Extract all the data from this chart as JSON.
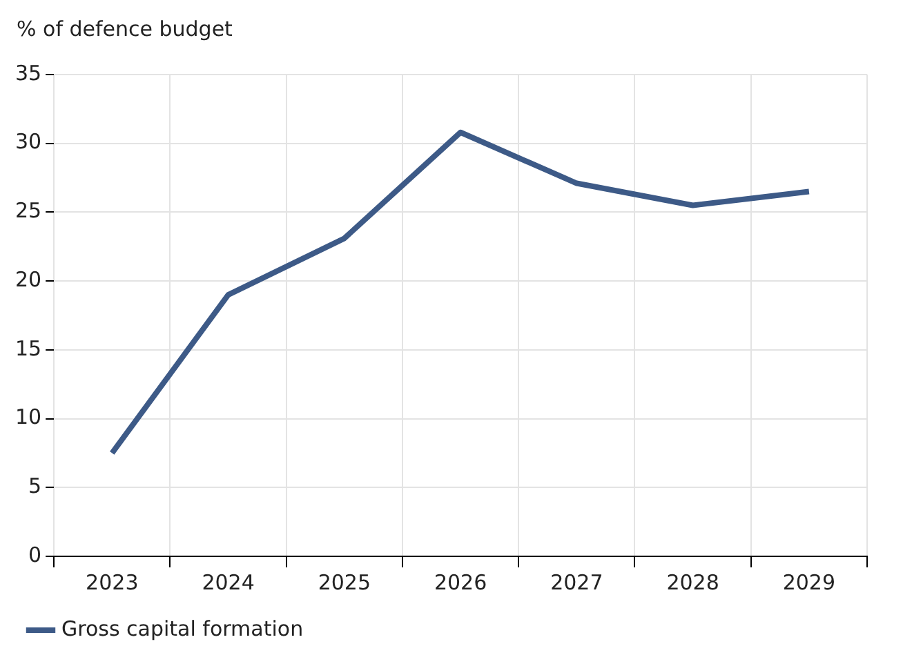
{
  "chart_data": {
    "type": "line",
    "ylabel": "% of defence budget",
    "categories": [
      "2023",
      "2024",
      "2025",
      "2026",
      "2027",
      "2028",
      "2029"
    ],
    "series": [
      {
        "name": "Gross capital formation",
        "color": "#3d5a87",
        "values": [
          7.5,
          19,
          23.1,
          30.8,
          27.1,
          25.5,
          26.5
        ]
      }
    ],
    "ylim": [
      0,
      35
    ],
    "yticks": [
      0,
      5,
      10,
      15,
      20,
      25,
      30,
      35
    ],
    "grid": true,
    "legend": "bottom left",
    "marker": "none",
    "line_style": "solid"
  }
}
